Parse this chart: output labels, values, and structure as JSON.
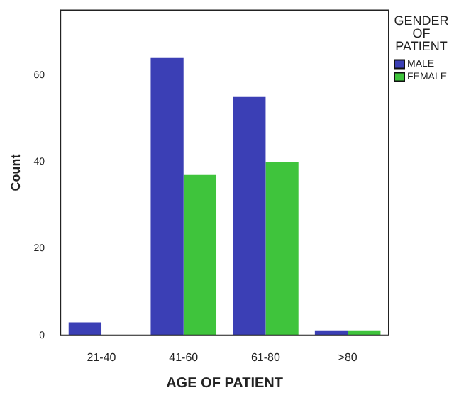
{
  "chart_data": {
    "type": "bar",
    "xlabel": "AGE OF PATIENT",
    "ylabel": "Count",
    "legend_title": "GENDER OF PATIENT",
    "categories": [
      "21-40",
      "41-60",
      "61-80",
      ">80"
    ],
    "series": [
      {
        "name": "MALE",
        "color": "#3b3fb5",
        "values": [
          3,
          64,
          55,
          1
        ]
      },
      {
        "name": "FEMALE",
        "color": "#3fc43c",
        "values": [
          0,
          37,
          40,
          1
        ]
      }
    ],
    "ylim": [
      0,
      75
    ],
    "yticks": [
      0,
      20,
      40,
      60
    ],
    "grid": false,
    "legend": "right"
  }
}
